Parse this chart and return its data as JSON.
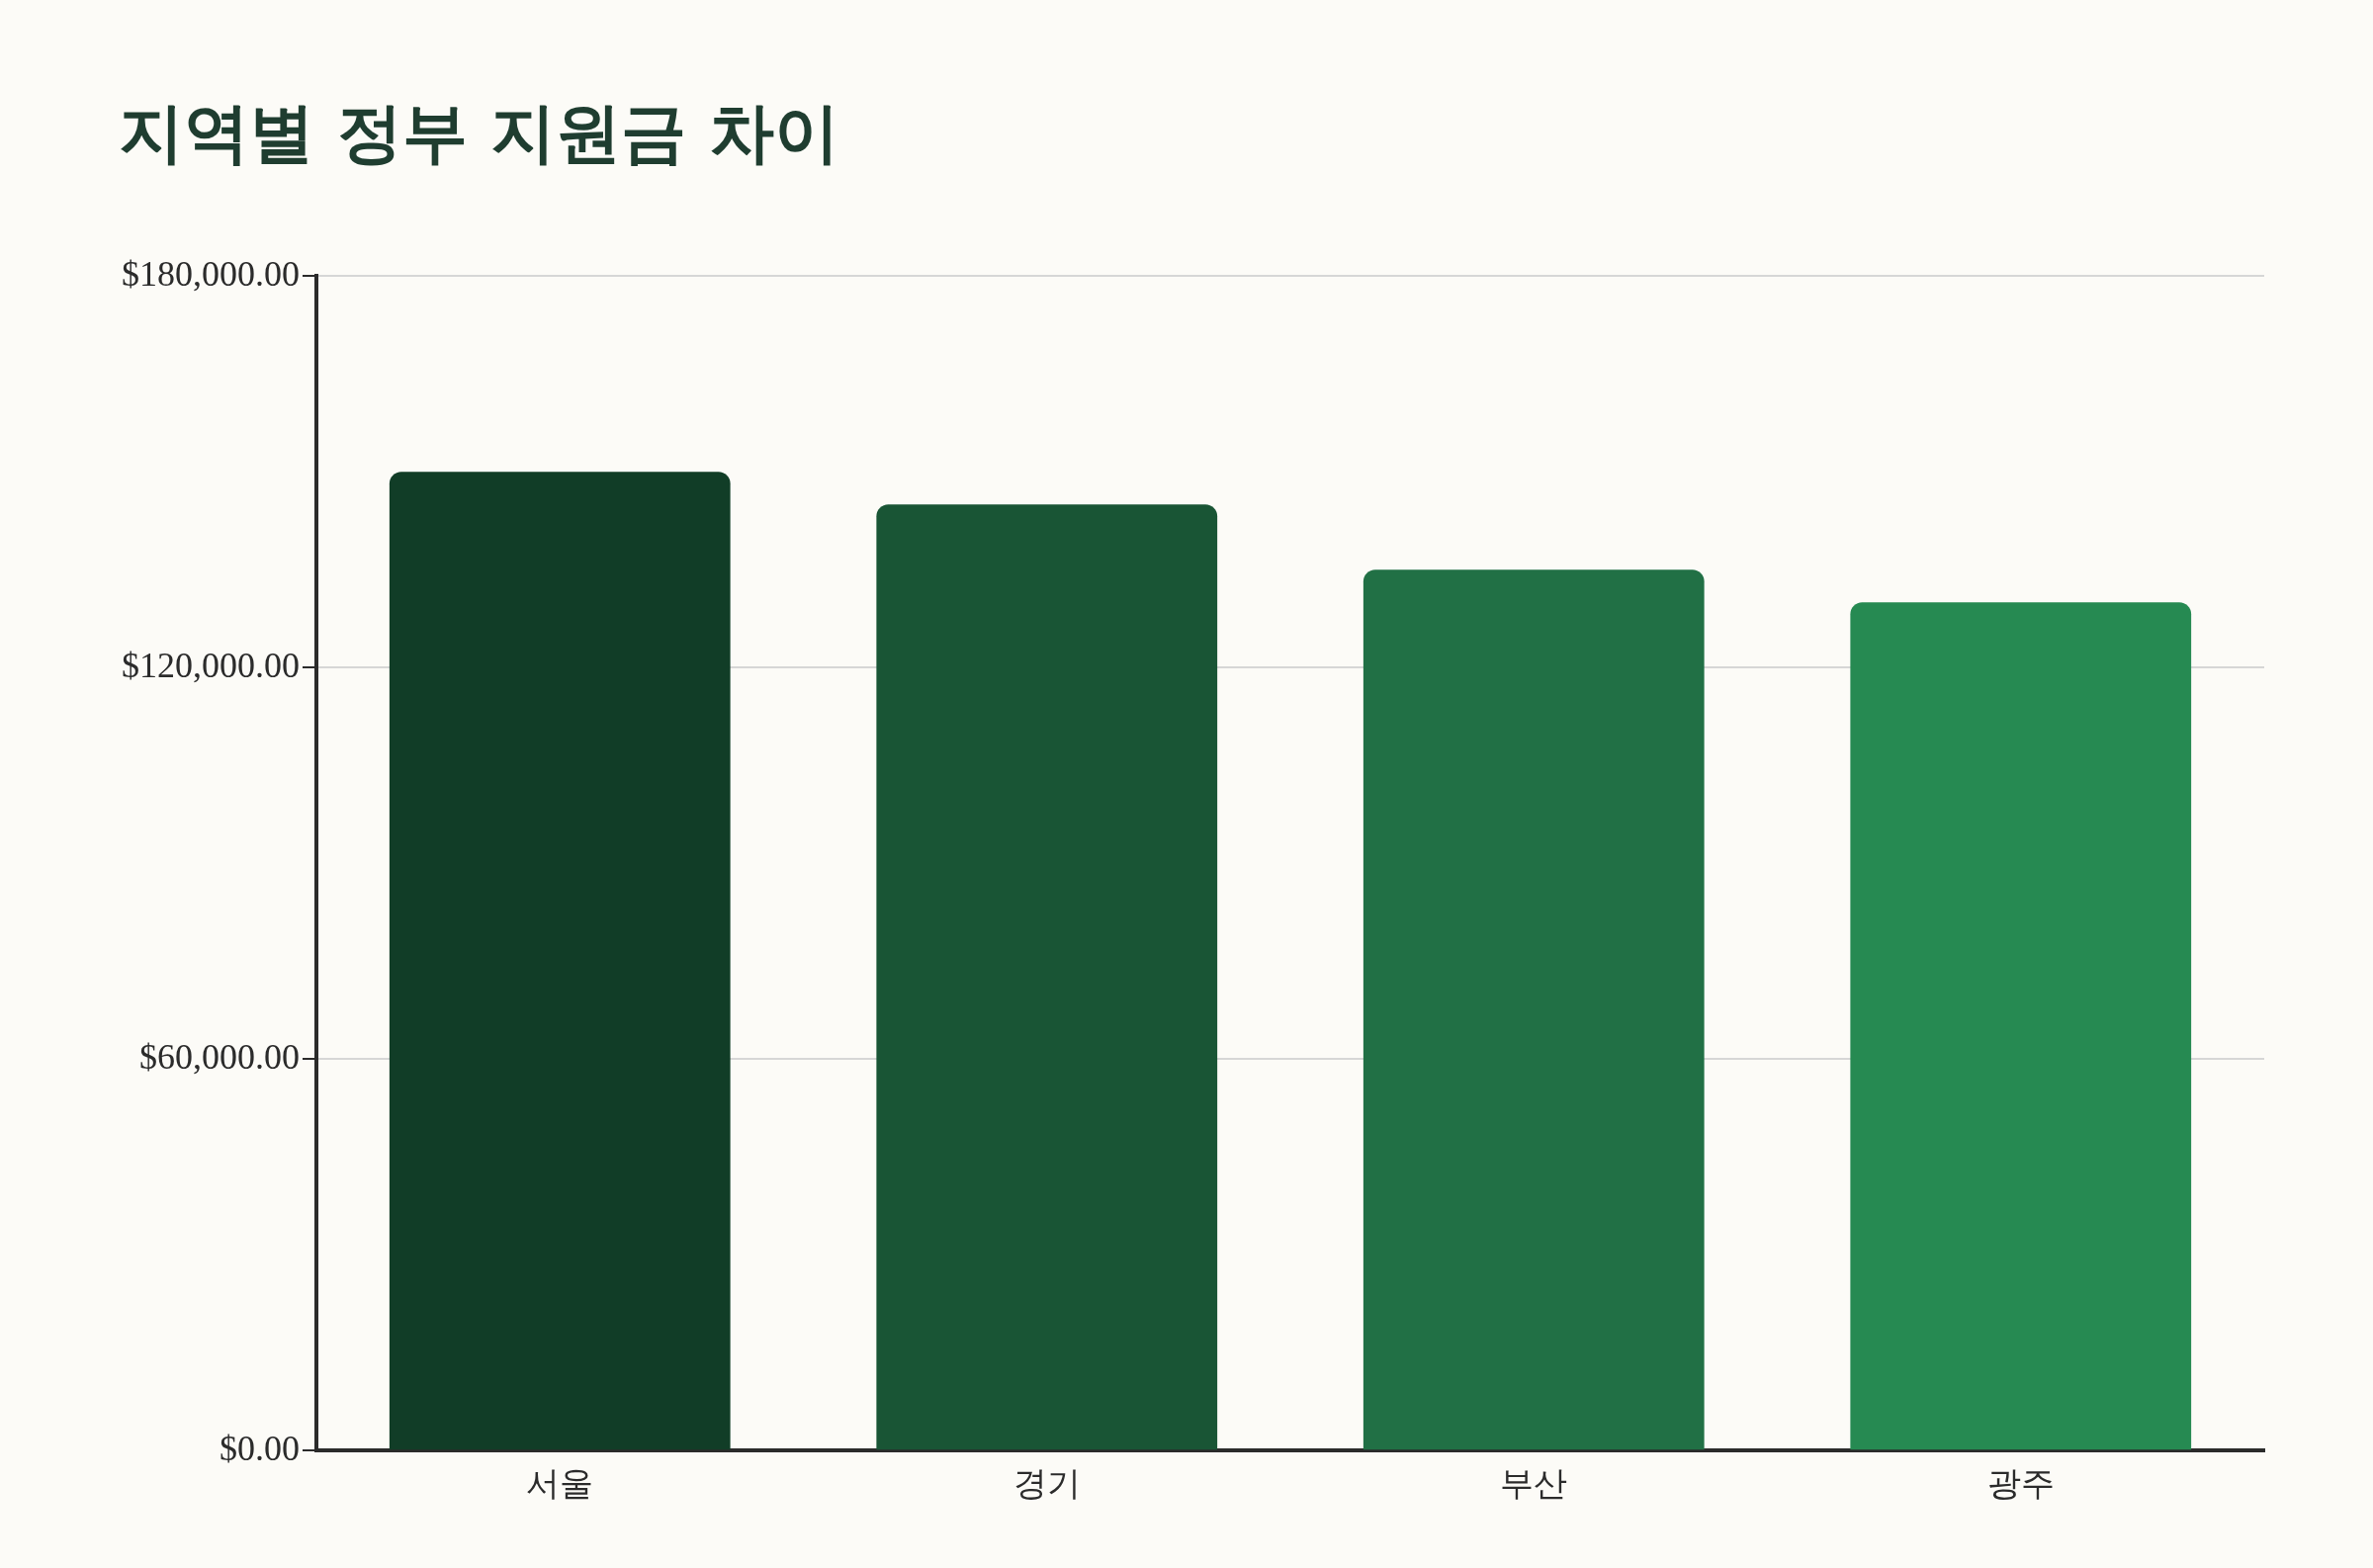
{
  "chart_data": {
    "type": "bar",
    "title": "지역별 정부 지원금 차이",
    "categories": [
      "서울",
      "경기",
      "부산",
      "광주"
    ],
    "values": [
      150000,
      145000,
      135000,
      130000
    ],
    "colors": [
      "#113d27",
      "#195535",
      "#217045",
      "#268a52"
    ],
    "ylim": [
      0,
      180000
    ],
    "yticks": [
      {
        "value": 0,
        "label": "$0.00"
      },
      {
        "value": 60000,
        "label": "$60,000.00"
      },
      {
        "value": 120000,
        "label": "$120,000.00"
      },
      {
        "value": 180000,
        "label": "$180,000.00"
      }
    ],
    "grid": "y",
    "legend": false
  }
}
